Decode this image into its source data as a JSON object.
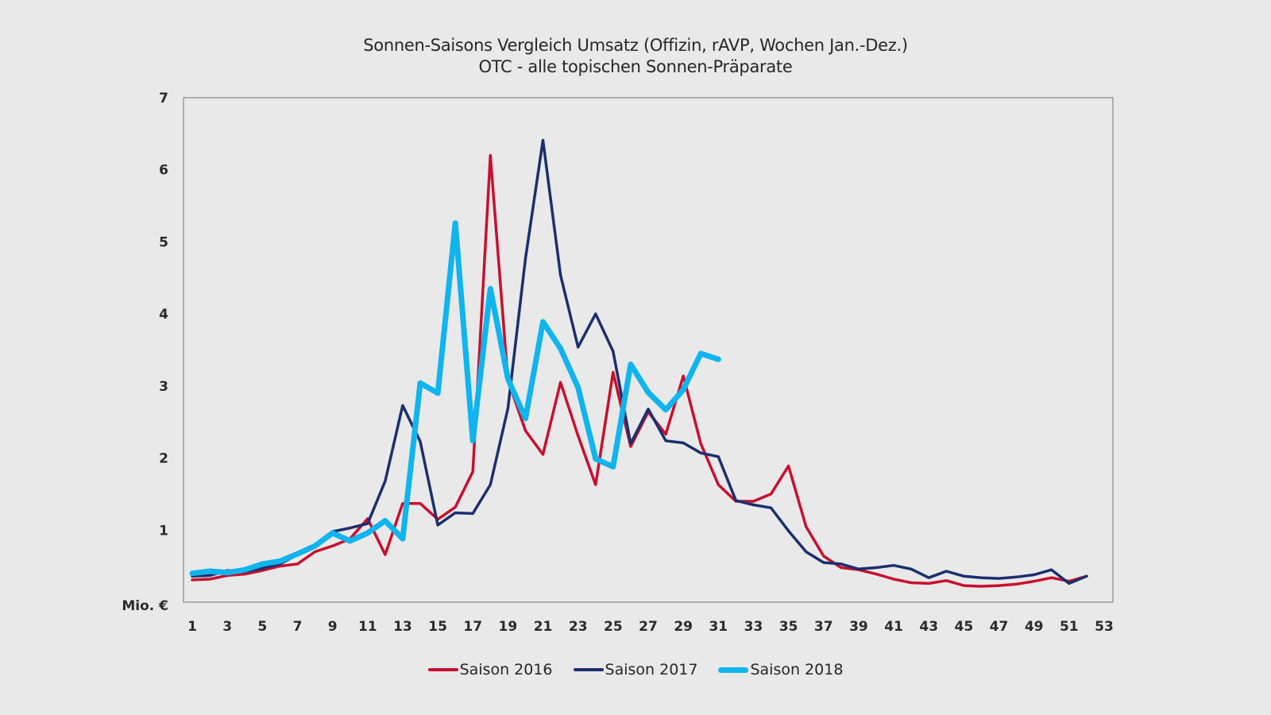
{
  "chart_data": {
    "type": "line",
    "title": "Sonnen-Saisons Vergleich Umsatz (Offizin, rAVP, Wochen Jan.-Dez.)",
    "subtitle": "OTC - alle topischen Sonnen-Präparate",
    "xlabel": "",
    "ylabel": "Mio. €",
    "xlim": [
      0.5,
      53.5
    ],
    "ylim": [
      0,
      7
    ],
    "x_ticks": [
      1,
      3,
      5,
      7,
      9,
      11,
      13,
      15,
      17,
      19,
      21,
      23,
      25,
      27,
      29,
      31,
      33,
      35,
      37,
      39,
      41,
      43,
      45,
      47,
      49,
      51,
      53
    ],
    "y_ticks": [
      1,
      2,
      3,
      4,
      5,
      6,
      7
    ],
    "grid": false,
    "legend_position": "bottom",
    "series": [
      {
        "name": "Saison 2016",
        "color": "#c8102e",
        "x": [
          1,
          2,
          3,
          4,
          5,
          6,
          7,
          8,
          9,
          10,
          11,
          12,
          13,
          14,
          15,
          16,
          17,
          18,
          19,
          20,
          21,
          22,
          23,
          24,
          25,
          26,
          27,
          28,
          29,
          30,
          31,
          32,
          33,
          34,
          35,
          36,
          37,
          38,
          39,
          40,
          41,
          42,
          43,
          44,
          45,
          46,
          47,
          48,
          49,
          50,
          51,
          52
        ],
        "values": [
          0.31,
          0.32,
          0.37,
          0.39,
          0.44,
          0.5,
          0.53,
          0.7,
          0.78,
          0.88,
          1.16,
          0.66,
          1.37,
          1.37,
          1.15,
          1.32,
          1.81,
          6.2,
          3.08,
          2.38,
          2.05,
          3.05,
          2.31,
          1.63,
          3.19,
          2.16,
          2.64,
          2.33,
          3.14,
          2.2,
          1.63,
          1.4,
          1.4,
          1.5,
          1.89,
          1.05,
          0.64,
          0.48,
          0.45,
          0.39,
          0.32,
          0.27,
          0.26,
          0.3,
          0.23,
          0.22,
          0.23,
          0.25,
          0.29,
          0.34,
          0.29,
          0.36
        ]
      },
      {
        "name": "Saison 2017",
        "color": "#1b2f6e",
        "x": [
          1,
          2,
          3,
          4,
          5,
          6,
          7,
          8,
          9,
          10,
          11,
          12,
          13,
          14,
          15,
          16,
          17,
          18,
          19,
          20,
          21,
          22,
          23,
          24,
          25,
          26,
          27,
          28,
          29,
          30,
          31,
          32,
          33,
          34,
          35,
          36,
          37,
          38,
          39,
          40,
          41,
          42,
          43,
          44,
          45,
          46,
          47,
          48,
          49,
          50,
          51,
          52
        ],
        "values": [
          0.36,
          0.37,
          0.44,
          0.42,
          0.47,
          0.53,
          0.66,
          0.79,
          0.98,
          1.03,
          1.09,
          1.68,
          2.73,
          2.23,
          1.07,
          1.24,
          1.23,
          1.63,
          2.69,
          4.77,
          6.41,
          4.54,
          3.54,
          4.0,
          3.48,
          2.2,
          2.68,
          2.24,
          2.21,
          2.07,
          2.02,
          1.41,
          1.35,
          1.31,
          0.99,
          0.7,
          0.55,
          0.53,
          0.46,
          0.48,
          0.51,
          0.46,
          0.34,
          0.43,
          0.36,
          0.34,
          0.33,
          0.35,
          0.38,
          0.45,
          0.26,
          0.36
        ]
      },
      {
        "name": "Saison 2018",
        "color": "#10b4ee",
        "x": [
          1,
          2,
          3,
          4,
          5,
          6,
          7,
          8,
          9,
          10,
          11,
          12,
          13,
          14,
          15,
          16,
          17,
          18,
          19,
          20,
          21,
          22,
          23,
          24,
          25,
          26,
          27,
          28,
          29,
          30,
          31
        ],
        "values": [
          0.4,
          0.43,
          0.41,
          0.45,
          0.53,
          0.57,
          0.67,
          0.78,
          0.96,
          0.85,
          0.96,
          1.13,
          0.88,
          3.04,
          2.9,
          5.26,
          2.24,
          4.35,
          3.1,
          2.55,
          3.89,
          3.52,
          2.98,
          1.99,
          1.88,
          3.3,
          2.91,
          2.67,
          2.95,
          3.45,
          3.37
        ]
      }
    ]
  }
}
